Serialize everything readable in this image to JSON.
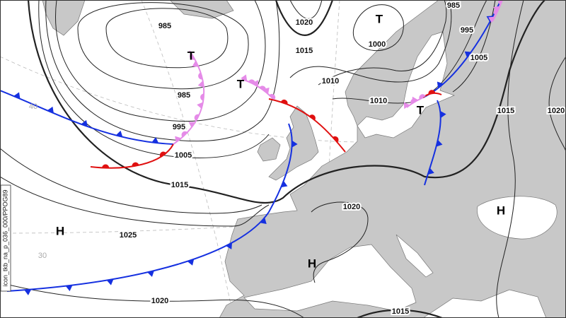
{
  "isobar_labels": [
    985,
    1020,
    1015,
    1000,
    985,
    995,
    1005,
    1010,
    1010,
    985,
    995,
    1005,
    1015,
    1015,
    1020,
    1020,
    1025,
    1020,
    1015
  ],
  "pressure_centers": [
    "T",
    "T",
    "T",
    "T",
    "H",
    "H",
    "H"
  ],
  "latitude_labels": [
    40,
    30
  ],
  "product_id": "icon_tkb_na_p_036_000/PPOG89"
}
